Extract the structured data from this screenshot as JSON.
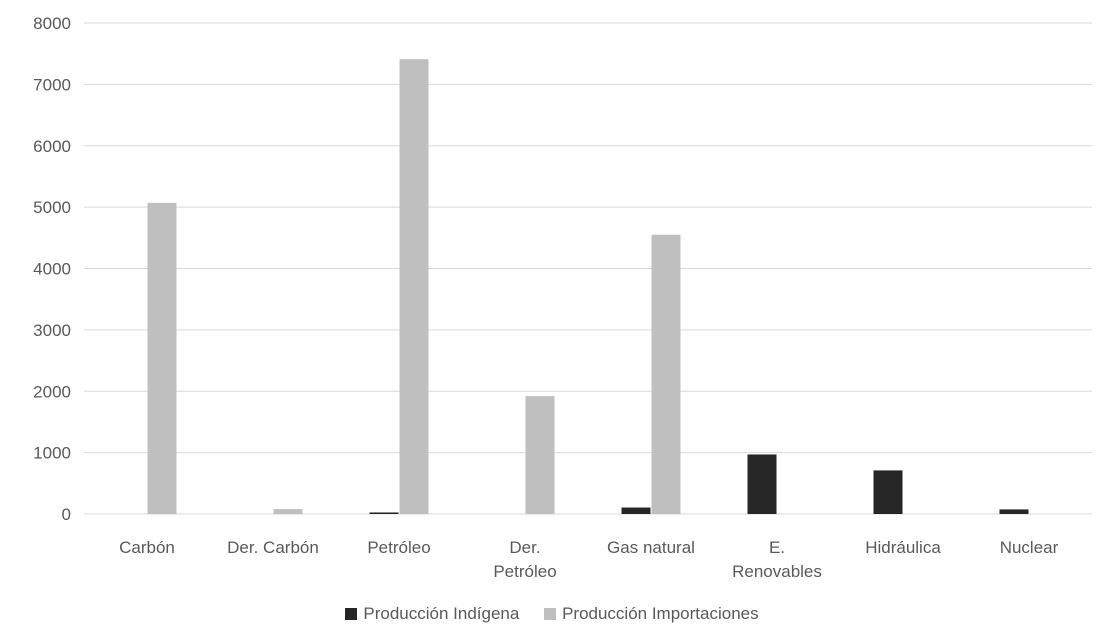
{
  "chart_data": {
    "type": "bar",
    "categories": [
      [
        "Carbón"
      ],
      [
        "Der. Carbón"
      ],
      [
        "Petróleo"
      ],
      [
        "Der.",
        "Petróleo"
      ],
      [
        "Gas natural"
      ],
      [
        "E.",
        "Renovables"
      ],
      [
        "Hidráulica"
      ],
      [
        "Nuclear"
      ]
    ],
    "series": [
      {
        "name": "Producción Indígena",
        "color": "#262626",
        "values": [
          0,
          0,
          25,
          0,
          105,
          970,
          710,
          75
        ]
      },
      {
        "name": "Producción Importaciones",
        "color": "#bfbfbf",
        "values": [
          5070,
          80,
          7410,
          1920,
          4550,
          0,
          0,
          0
        ]
      }
    ],
    "yticks": [
      "0",
      "1000",
      "2000",
      "3000",
      "4000",
      "5000",
      "6000",
      "7000",
      "8000"
    ],
    "ylim": [
      0,
      8000
    ],
    "grid": true,
    "legend_position": "bottom"
  }
}
